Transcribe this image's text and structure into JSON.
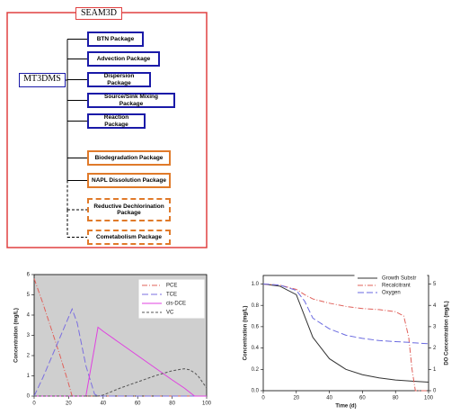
{
  "diagram": {
    "title": "SEAM3D",
    "root": "MT3DMS",
    "nodes": [
      {
        "label": "BTN Package",
        "style": "blue"
      },
      {
        "label": "Advection Package",
        "style": "blue"
      },
      {
        "label": "Dispersion Package",
        "style": "blue"
      },
      {
        "label": "Source/Sink Mixing Package",
        "style": "blue"
      },
      {
        "label": "Reaction Package",
        "style": "blue"
      },
      {
        "label": "Biodegradation Package",
        "style": "orange"
      },
      {
        "label": "NAPL Dissolution Package",
        "style": "orange"
      },
      {
        "label": "Reductive Dechlorination Package",
        "style": "orange-dashed"
      },
      {
        "label": "Cometabolism Package",
        "style": "orange-dashed"
      }
    ]
  },
  "chart_data": [
    {
      "type": "line",
      "y_label": "Concentration (mg/L)",
      "background": "#cfcfcf",
      "x": [
        0,
        5,
        10,
        15,
        20,
        22,
        25,
        30,
        35,
        37,
        40,
        50,
        60,
        70,
        80,
        87,
        90,
        93,
        95,
        100
      ],
      "xlim": [
        0,
        100
      ],
      "xticks": [
        0,
        20,
        40,
        60,
        80,
        100
      ],
      "ylim": [
        0,
        6
      ],
      "yticks": [
        0,
        1,
        2,
        3,
        4,
        5,
        6
      ],
      "series": [
        {
          "name": "PCE",
          "color": "#e0605a",
          "dash": "dashdot",
          "values": [
            5.8,
            4.6,
            3.3,
            2.0,
            0.6,
            0,
            0,
            0,
            0,
            0,
            0,
            0,
            0,
            0,
            0,
            0,
            0,
            0,
            0,
            0
          ]
        },
        {
          "name": "TCE",
          "color": "#7b6fe0",
          "dash": "dash",
          "values": [
            0,
            0.9,
            1.9,
            2.9,
            3.9,
            4.3,
            3.6,
            1.5,
            0.1,
            0,
            0,
            0,
            0,
            0,
            0,
            0,
            0,
            0,
            0,
            0
          ]
        },
        {
          "name": "cis-DCE",
          "color": "#e040e0",
          "dash": "solid",
          "values": [
            0,
            0,
            0,
            0,
            0,
            0,
            0,
            0,
            2.4,
            3.4,
            3.2,
            2.6,
            2.0,
            1.4,
            0.8,
            0.4,
            0.2,
            0,
            0,
            0
          ]
        },
        {
          "name": "VC",
          "color": "#555555",
          "dash": "shortdash",
          "values": [
            0,
            0,
            0,
            0,
            0,
            0,
            0,
            0,
            0,
            0,
            0.05,
            0.4,
            0.7,
            1.0,
            1.25,
            1.35,
            1.3,
            1.15,
            1.0,
            0.4
          ]
        }
      ]
    },
    {
      "type": "line",
      "x_label": "Time (d)",
      "y_label": "Concentration (mg/L)",
      "y2_label": "DO Concentration (mg/L)",
      "background": "#ffffff",
      "x": [
        0,
        10,
        20,
        25,
        30,
        40,
        50,
        60,
        70,
        80,
        85,
        88,
        90,
        92,
        100
      ],
      "xlim": [
        0,
        100
      ],
      "xticks": [
        0,
        20,
        40,
        60,
        80,
        100
      ],
      "ylim": [
        0,
        1.08
      ],
      "yticks": [
        {
          "value": 0,
          "label": "0.0"
        },
        0.2,
        0.4,
        0.6,
        0.8,
        {
          "value": 1,
          "label": "1.0"
        }
      ],
      "y2lim": [
        0,
        5.4
      ],
      "y2ticks": [
        0,
        1,
        2,
        3,
        4,
        5
      ],
      "series": [
        {
          "name": "Growth Substr",
          "color": "#333333",
          "dash": "solid",
          "values": [
            1.0,
            0.98,
            0.9,
            0.7,
            0.5,
            0.3,
            0.2,
            0.15,
            0.12,
            0.1,
            0.095,
            0.092,
            0.09,
            0.088,
            0.08
          ]
        },
        {
          "name": "Recalcitrant",
          "color": "#e0605a",
          "dash": "dashdot",
          "values": [
            1.0,
            0.99,
            0.95,
            0.9,
            0.86,
            0.82,
            0.79,
            0.77,
            0.76,
            0.74,
            0.7,
            0.5,
            0.2,
            0,
            0
          ]
        },
        {
          "name": "Oxygen",
          "color": "#6a6ae0",
          "dash": "dash",
          "axis": "y2",
          "values": [
            5,
            4.95,
            4.7,
            4.2,
            3.4,
            2.9,
            2.6,
            2.45,
            2.35,
            2.3,
            2.28,
            2.27,
            2.25,
            2.24,
            2.2
          ]
        }
      ]
    }
  ]
}
